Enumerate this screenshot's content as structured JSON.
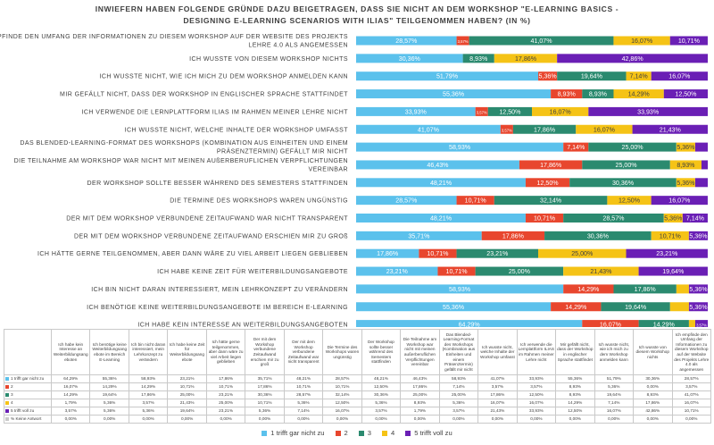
{
  "colors": [
    "#5bc1ec",
    "#e8462e",
    "#2b8a6f",
    "#f5c316",
    "#6a1fb5",
    "#c8c8c8"
  ],
  "chart_data": {
    "type": "bar",
    "stacked": "100%",
    "orientation": "horizontal",
    "title": "INWIEFERN HABEN FOLGENDE GRÜNDE DAZU BEIGETRAGEN, DASS SIE NICHT AN DEM WORKSHOP \"E-LEARNING BASICS - DESIGNING E-LEARNING SCENARIOS WITH ILIAS\" TEILGENOMMEN HABEN? (IN %)",
    "categories": [
      [
        "ICH EMPFINDE DEN UMFANG DER INFORMATIONEN ZU DIESEM WORKSHOP AUF DER WEBSITE DES PROJEKTS",
        "LEHRE 4.0 ALS ANGEMESSEN"
      ],
      [
        "ICH WUSSTE VON DIESEM WORKSHOP NICHTS"
      ],
      [
        "ICH WUSSTE NICHT, WIE ICH MICH ZU DEM WORKSHOP ANMELDEN KANN"
      ],
      [
        "MIR GEFÄLLT NICHT, DASS DER WORKSHOP IN ENGLISCHER SPRACHE STATTFINDET"
      ],
      [
        "ICH VERWENDE DIE LERNPLATTFORM ILIAS IM RAHMEN MEINER LEHRE NICHT"
      ],
      [
        "ICH WUSSTE NICHT, WELCHE INHALTE DER WORKSHOP UMFASST"
      ],
      [
        "DAS BLENDED-LEARNING-FORMAT DES WORKSHOPS (KOMBINATION AUS EINHEITEN UND EINEM",
        "PRÄSENZTERMIN) GEFÄLLT MIR NICHT"
      ],
      [
        "DIE TEILNAHME AM WORKSHOP WAR NICHT MIT MEINEN AUßERBERUFLICHEN VERPFLICHTUNGEN",
        "VEREINBAR"
      ],
      [
        "DER WORKSHOP SOLLTE BESSER WÄHREND DES SEMESTERS STATTFINDEN"
      ],
      [
        "DIE TERMINE DES WORKSHOPS WAREN UNGÜNSTIG"
      ],
      [
        "DER MIT DEM WORKSHOP VERBUNDENE ZEITAUFWAND WAR NICHT TRANSPARENT"
      ],
      [
        "DER MIT DEM WORKSHOP VERBUNDENE ZEITAUFWAND ERSCHIEN MIR ZU GROß"
      ],
      [
        "ICH HÄTTE GERNE TEILGENOMMEN, ABER DANN WÄRE ZU VIEL ARBEIT LIEGEN GEBLIEBEN"
      ],
      [
        "ICH HABE KEINE ZEIT FÜR WEITERBILDUNGSANGEBOTE"
      ],
      [
        "ICH BIN NICHT DARAN INTERESSIERT, MEIN LEHRKONZEPT ZU VERÄNDERN"
      ],
      [
        "ICH BENÖTIGE KEINE WEITERBILDUNGSANGEBOTE IM BEREICH E-LEARNING"
      ],
      [
        "ICH HABE KEIN INTERESSE AN WEITERBILDUNGSANGEBOTEN"
      ]
    ],
    "series": [
      {
        "name": "1 trifft gar nicht zu",
        "values": [
          28.57,
          30.36,
          51.79,
          55.36,
          33.93,
          41.07,
          58.93,
          46.43,
          48.21,
          28.57,
          48.21,
          35.71,
          17.86,
          23.21,
          58.93,
          55.36,
          64.29
        ]
      },
      {
        "name": "2",
        "values": [
          3.57,
          0.0,
          5.36,
          8.93,
          3.57,
          3.57,
          7.14,
          17.86,
          12.5,
          10.71,
          10.71,
          17.86,
          10.71,
          10.71,
          14.29,
          14.29,
          16.07
        ]
      },
      {
        "name": "3",
        "values": [
          41.07,
          8.93,
          19.64,
          8.93,
          12.5,
          17.86,
          25.0,
          25.0,
          30.36,
          32.14,
          28.57,
          30.36,
          23.21,
          25.0,
          17.86,
          19.64,
          14.29
        ]
      },
      {
        "name": "4",
        "values": [
          16.07,
          17.86,
          7.14,
          14.29,
          16.07,
          16.07,
          5.36,
          8.93,
          5.36,
          12.5,
          5.36,
          10.71,
          25.0,
          21.43,
          3.57,
          5.36,
          1.79
        ]
      },
      {
        "name": "5 trifft voll zu",
        "values": [
          10.71,
          42.86,
          16.07,
          12.5,
          33.93,
          21.43,
          3.57,
          1.79,
          3.57,
          16.07,
          7.14,
          5.36,
          23.21,
          19.64,
          5.36,
          5.36,
          3.57
        ]
      },
      {
        "name": "% Keine Antwort",
        "values": [
          0.0,
          0.0,
          0.0,
          0.0,
          0.0,
          0.0,
          0.0,
          0.0,
          0.0,
          0.0,
          0.0,
          0.0,
          0.0,
          0.0,
          0.0,
          0.0,
          0.0
        ]
      }
    ],
    "bar_labels": [
      [
        "28,57%",
        "3,57%",
        "41,07%",
        "16,07%",
        "10,71%",
        ""
      ],
      [
        "30,36%",
        "",
        "8,93%",
        "17,86%",
        "42,86%",
        ""
      ],
      [
        "51,79%",
        "5,36%",
        "19,64%",
        "7,14%",
        "16,07%",
        ""
      ],
      [
        "55,36%",
        "8,93%",
        "8,93%",
        "14,29%",
        "12,50%",
        ""
      ],
      [
        "33,93%",
        "3,57%",
        "12,50%",
        "16,07%",
        "33,93%",
        ""
      ],
      [
        "41,07%",
        "3,57%",
        "17,86%",
        "16,07%",
        "21,43%",
        ""
      ],
      [
        "58,93%",
        "7,14%",
        "25,00%",
        "5,36%",
        "",
        ""
      ],
      [
        "46,43%",
        "17,86%",
        "25,00%",
        "8,93%",
        "",
        ""
      ],
      [
        "48,21%",
        "12,50%",
        "30,36%",
        "5,36%",
        "",
        ""
      ],
      [
        "28,57%",
        "10,71%",
        "32,14%",
        "12,50%",
        "16,07%",
        ""
      ],
      [
        "48,21%",
        "10,71%",
        "28,57%",
        "5,36%",
        "7,14%",
        ""
      ],
      [
        "35,71%",
        "17,86%",
        "30,36%",
        "10,71%",
        "5,36%",
        ""
      ],
      [
        "17,86%",
        "10,71%",
        "23,21%",
        "25,00%",
        "23,21%",
        ""
      ],
      [
        "23,21%",
        "10,71%",
        "25,00%",
        "21,43%",
        "19,64%",
        ""
      ],
      [
        "58,93%",
        "14,29%",
        "17,86%",
        "",
        "5,36%",
        ""
      ],
      [
        "55,36%",
        "14,29%",
        "19,64%",
        "",
        "5,36%",
        ""
      ],
      [
        "64,29%",
        "16,07%",
        "14,29%",
        "",
        "3,57%",
        ""
      ]
    ],
    "xlim": [
      0,
      100
    ]
  },
  "table": {
    "columns": [
      "Ich habe kein Interesse an Weiterbildungsang eboten",
      "Ich benötige keine Weiterbildungsang ebote im Bereich E-Learning",
      "Ich bin nicht daran interessiert, mein Lehrkonzept zu verändern",
      "Ich habe keine Zeit für Weiterbildungsang ebote",
      "Ich hätte gerne teilgenommen, aber dann wäre zu viel Arbeit liegen geblieben",
      "Der mit dem Workshop verbundene Zeitaufwand erschien mir zu groß",
      "Der mit dem Workshop verbundene Zeitaufwand war nicht transparent",
      "Die Termine des Workshops waren ungünstig",
      "Der Workshop sollte besser während des Semesters stattfinden",
      "Die Teilnahme am Workshop war nicht mit meinen außerberuflichen Verpflichtungen vereinbar",
      "Das Blended-Learning-Format des Workshops (Kombination aus Einheiten und einem Präsenztermin) gefällt mir nicht",
      "Ich wusste nicht, welche Inhalte der Workshop umfasst",
      "Ich verwende die Lernplattform ILIAS im Rahmen meiner Lehre nicht",
      "Mir gefällt nicht, dass der Workshop in englischer Sprache stattfindet",
      "Ich wusste nicht, wie ich mich zu dem Workshop anmelden kann",
      "Ich wusste von diesem Workshop nichts",
      "Ich empfinde den Umfang der Informationen zu diesem Workshop auf der Website des Projekts Lehre 4.0 als angemessen"
    ],
    "rows": [
      {
        "label": "1 trifft gar nicht zu",
        "cells": [
          "64,29%",
          "55,36%",
          "58,93%",
          "23,21%",
          "17,86%",
          "35,71%",
          "48,21%",
          "28,57%",
          "48,21%",
          "46,43%",
          "58,93%",
          "41,07%",
          "33,93%",
          "55,36%",
          "51,79%",
          "30,36%",
          "28,57%"
        ]
      },
      {
        "label": "2",
        "cells": [
          "16,07%",
          "14,29%",
          "14,29%",
          "10,71%",
          "10,71%",
          "17,86%",
          "10,71%",
          "10,71%",
          "12,50%",
          "17,86%",
          "7,14%",
          "3,57%",
          "3,57%",
          "8,93%",
          "5,36%",
          "0,00%",
          "3,57%"
        ]
      },
      {
        "label": "3",
        "cells": [
          "14,29%",
          "19,64%",
          "17,86%",
          "25,00%",
          "23,21%",
          "30,36%",
          "28,57%",
          "32,14%",
          "30,36%",
          "25,00%",
          "25,00%",
          "17,86%",
          "12,50%",
          "8,93%",
          "19,64%",
          "8,93%",
          "41,07%"
        ]
      },
      {
        "label": "4",
        "cells": [
          "1,79%",
          "5,36%",
          "3,57%",
          "21,43%",
          "25,00%",
          "10,71%",
          "5,36%",
          "12,50%",
          "5,36%",
          "8,93%",
          "5,36%",
          "16,07%",
          "16,07%",
          "14,29%",
          "7,14%",
          "17,86%",
          "16,07%"
        ]
      },
      {
        "label": "5 trifft voll zu",
        "cells": [
          "3,57%",
          "5,36%",
          "5,36%",
          "19,64%",
          "23,21%",
          "5,36%",
          "7,14%",
          "16,07%",
          "3,57%",
          "1,79%",
          "3,57%",
          "21,43%",
          "33,93%",
          "12,50%",
          "16,07%",
          "42,86%",
          "10,71%"
        ]
      },
      {
        "label": "% Keine Antwort",
        "cells": [
          "0,00%",
          "0,00%",
          "0,00%",
          "0,00%",
          "0,00%",
          "0,00%",
          "0,00%",
          "0,00%",
          "0,00%",
          "0,00%",
          "0,00%",
          "0,00%",
          "0,00%",
          "0,00%",
          "0,00%",
          "0,00%",
          "0,00%"
        ]
      }
    ]
  },
  "legend": [
    "1 trifft gar nicht zu",
    "2",
    "3",
    "4",
    "5 trifft voll zu"
  ]
}
